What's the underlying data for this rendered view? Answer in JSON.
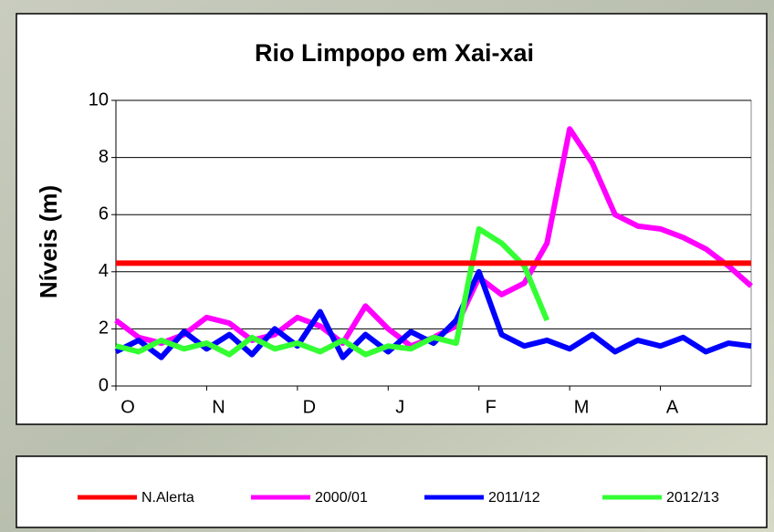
{
  "chart_data": {
    "type": "line",
    "title": "Rio Limpopo em Xai-xai",
    "y_label": "Níveis (m)",
    "x": [
      0,
      0.25,
      0.5,
      0.75,
      1,
      1.25,
      1.5,
      1.75,
      2,
      2.25,
      2.5,
      2.75,
      3,
      3.25,
      3.5,
      3.75,
      4,
      4.25,
      4.5,
      4.75,
      5,
      5.25,
      5.5,
      5.75,
      6,
      6.25,
      6.5,
      6.75,
      7
    ],
    "xlim": [
      0,
      7
    ],
    "xticks": [
      {
        "value": 0,
        "label": "O"
      },
      {
        "value": 1,
        "label": "N"
      },
      {
        "value": 2,
        "label": "D"
      },
      {
        "value": 3,
        "label": "J"
      },
      {
        "value": 4,
        "label": "F"
      },
      {
        "value": 5,
        "label": "M"
      },
      {
        "value": 6,
        "label": "A"
      }
    ],
    "ylim": [
      0,
      10
    ],
    "yticks": [
      0,
      2,
      4,
      6,
      8,
      10
    ],
    "grid": true,
    "legend": "bottom",
    "series": [
      {
        "name": "N.Alerta",
        "color": "#ff0000",
        "values": [
          4.3,
          4.3,
          4.3,
          4.3,
          4.3,
          4.3,
          4.3,
          4.3,
          4.3,
          4.3,
          4.3,
          4.3,
          4.3,
          4.3,
          4.3,
          4.3,
          4.3,
          4.3,
          4.3,
          4.3,
          4.3,
          4.3,
          4.3,
          4.3,
          4.3,
          4.3,
          4.3,
          4.3,
          4.3
        ]
      },
      {
        "name": "2000/01",
        "color": "#ff00ff",
        "values": [
          2.3,
          1.7,
          1.5,
          1.8,
          2.4,
          2.2,
          1.6,
          1.8,
          2.4,
          2.1,
          1.5,
          2.8,
          2.0,
          1.4,
          1.7,
          2.1,
          3.8,
          3.2,
          3.6,
          5.0,
          9.0,
          7.8,
          6.0,
          5.6,
          5.5,
          5.2,
          4.8,
          4.2,
          3.5
        ]
      },
      {
        "name": "2011/12",
        "color": "#0000ff",
        "values": [
          1.2,
          1.6,
          1.0,
          1.9,
          1.3,
          1.8,
          1.1,
          2.0,
          1.4,
          2.6,
          1.0,
          1.8,
          1.2,
          1.9,
          1.5,
          2.3,
          4.0,
          1.8,
          1.4,
          1.6,
          1.3,
          1.8,
          1.2,
          1.6,
          1.4,
          1.7,
          1.2,
          1.5,
          1.4
        ]
      },
      {
        "name": "2012/13",
        "color": "#33ff33",
        "values": [
          1.4,
          1.2,
          1.6,
          1.3,
          1.5,
          1.1,
          1.7,
          1.3,
          1.5,
          1.2,
          1.6,
          1.1,
          1.4,
          1.3,
          1.7,
          1.5,
          5.5,
          5.0,
          4.2,
          2.3,
          null,
          null,
          null,
          null,
          null,
          null,
          null,
          null,
          null
        ]
      }
    ]
  }
}
